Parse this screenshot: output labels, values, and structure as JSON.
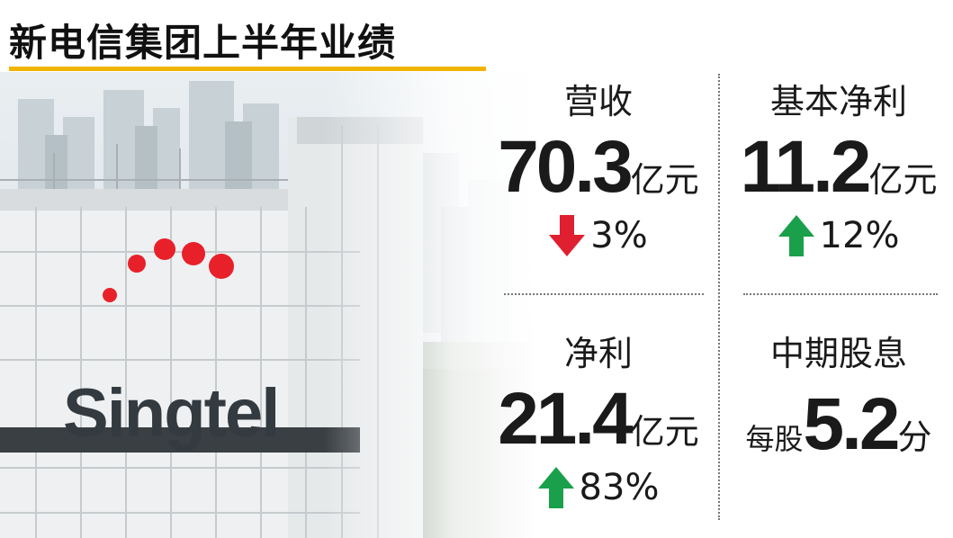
{
  "title": "新电信集团上半年业绩",
  "photo": {
    "logo_text": "Singtel",
    "logo_dot_color": "#e8202a"
  },
  "stats": [
    {
      "label": "营收",
      "value": "70.3",
      "unit": "亿元",
      "direction": "down",
      "change": "3%"
    },
    {
      "label": "基本净利",
      "value": "11.2",
      "unit": "亿元",
      "direction": "up",
      "change": "12%"
    },
    {
      "label": "净利",
      "value": "21.4",
      "unit": "亿元",
      "direction": "up",
      "change": "83%"
    },
    {
      "label": "中期股息",
      "prefix": "每股",
      "value": "5.2",
      "unit": "分"
    }
  ],
  "colors": {
    "accent": "#f0b400",
    "down": "#e02030",
    "up": "#1aa04a"
  }
}
